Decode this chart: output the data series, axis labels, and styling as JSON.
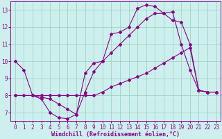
{
  "title": "Windchill (Refroidissement éolien,°C)",
  "bg_color": "#cdf0ee",
  "line_color": "#880088",
  "grid_color": "#99ccbb",
  "xlim": [
    -0.5,
    23.5
  ],
  "ylim": [
    6.5,
    13.5
  ],
  "xticks": [
    0,
    1,
    2,
    3,
    4,
    5,
    6,
    7,
    8,
    9,
    10,
    11,
    12,
    13,
    14,
    15,
    16,
    17,
    18,
    19,
    20,
    21,
    22,
    23
  ],
  "yticks": [
    7,
    8,
    9,
    10,
    11,
    12,
    13
  ],
  "line1_x": [
    0,
    1,
    2,
    3,
    4,
    5,
    6,
    7,
    8,
    9,
    10,
    11,
    12,
    13,
    14,
    15,
    16,
    17,
    18,
    19,
    20,
    21,
    22,
    23
  ],
  "line1_y": [
    10.0,
    9.5,
    8.0,
    7.8,
    7.0,
    6.7,
    6.65,
    6.9,
    9.3,
    9.9,
    10.0,
    11.6,
    11.7,
    12.0,
    13.1,
    13.3,
    13.2,
    12.8,
    12.9,
    11.0,
    9.5,
    8.3,
    8.2,
    8.2
  ],
  "line2_x": [
    0,
    1,
    2,
    3,
    4,
    5,
    6,
    7,
    8,
    9,
    10,
    11,
    12,
    13,
    14,
    15,
    16,
    17,
    18,
    19,
    20,
    21,
    22,
    23
  ],
  "line2_y": [
    8.0,
    8.0,
    8.0,
    8.0,
    8.0,
    8.0,
    8.0,
    8.0,
    8.0,
    8.0,
    8.2,
    8.5,
    8.7,
    8.9,
    9.1,
    9.3,
    9.6,
    9.9,
    10.2,
    10.5,
    10.8,
    8.3,
    8.2,
    8.2
  ],
  "line3_x": [
    0,
    2,
    3,
    4,
    5,
    6,
    7,
    8,
    9,
    10,
    11,
    12,
    13,
    14,
    15,
    16,
    17,
    18,
    19,
    20,
    21,
    22,
    23
  ],
  "line3_y": [
    8.0,
    8.0,
    7.9,
    7.8,
    7.5,
    7.2,
    6.9,
    8.2,
    9.4,
    10.0,
    10.5,
    11.0,
    11.5,
    12.0,
    12.5,
    12.8,
    12.8,
    12.4,
    12.3,
    11.0,
    8.3,
    8.2,
    8.2
  ],
  "tick_fontsize": 5.5,
  "xlabel_fontsize": 6,
  "markersize": 2.0,
  "linewidth": 0.8
}
